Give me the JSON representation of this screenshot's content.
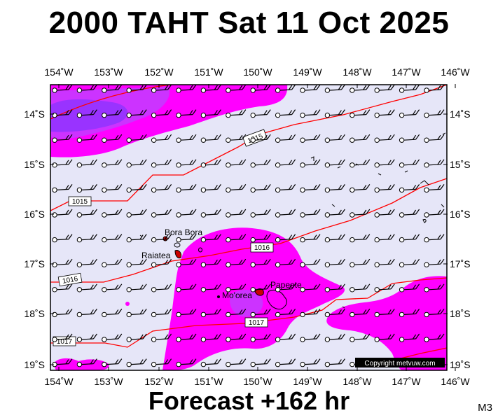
{
  "title": "2000 TAHT Sat 11 Oct 2025",
  "footer": "Forecast +162 hr",
  "model": "M3",
  "copyright": "Copyright metvuw.com",
  "x_axis_labels": [
    "154˚W",
    "153˚W",
    "152˚W",
    "151˚W",
    "150˚W",
    "149˚W",
    "148˚W",
    "147˚W",
    "146˚W"
  ],
  "y_axis_labels": [
    "14˚S",
    "15˚S",
    "16˚S",
    "17˚S",
    "18˚S",
    "19˚S"
  ],
  "places": {
    "bora_bora": "Bora Bora",
    "raiatea": "Raiatea",
    "moorea": "Mo'orea",
    "papeete": "Papeete"
  },
  "isobars": [
    "1015",
    "1015",
    "1016",
    "1016",
    "1017",
    "1017"
  ],
  "colors": {
    "background": "#e6e6f8",
    "rain_light": "#ff00ff",
    "rain_medium": "#cc33ff",
    "rain_heavy": "#9933ff",
    "isobar": "#ff0000",
    "copyright_bg": "#000000"
  }
}
